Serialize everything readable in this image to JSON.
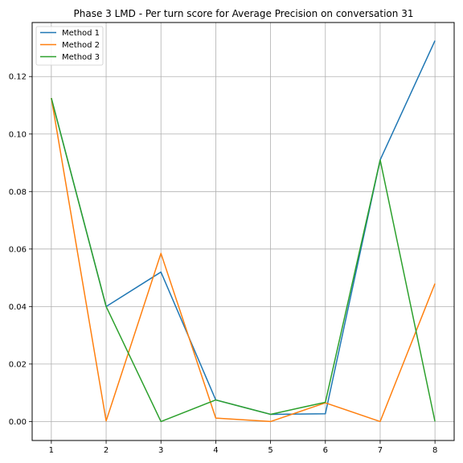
{
  "chart_data": {
    "type": "line",
    "title": "Phase 3 LMD - Per turn score for Average Precision on conversation 31",
    "xlabel": "",
    "ylabel": "",
    "x": [
      1,
      2,
      3,
      4,
      5,
      6,
      7,
      8
    ],
    "x_ticks": [
      "1",
      "2",
      "3",
      "4",
      "5",
      "6",
      "7",
      "8"
    ],
    "y_ticks": [
      "0.00",
      "0.02",
      "0.04",
      "0.06",
      "0.08",
      "0.10",
      "0.12"
    ],
    "xlim": [
      0.65,
      8.35
    ],
    "ylim": [
      -0.0066,
      0.1388
    ],
    "grid": true,
    "legend_position": "upper-left",
    "series": [
      {
        "name": "Method 1",
        "color": "#1f77b4",
        "values": [
          0.1125,
          0.04,
          0.052,
          0.0075,
          0.0025,
          0.0027,
          0.091,
          0.1325
        ]
      },
      {
        "name": "Method 2",
        "color": "#ff7f0e",
        "values": [
          0.1125,
          0.0002,
          0.0585,
          0.0012,
          0.0,
          0.0065,
          0.0,
          0.048
        ]
      },
      {
        "name": "Method 3",
        "color": "#2ca02c",
        "values": [
          0.1125,
          0.04,
          0.0,
          0.0075,
          0.0025,
          0.0067,
          0.091,
          0.0
        ]
      }
    ]
  }
}
